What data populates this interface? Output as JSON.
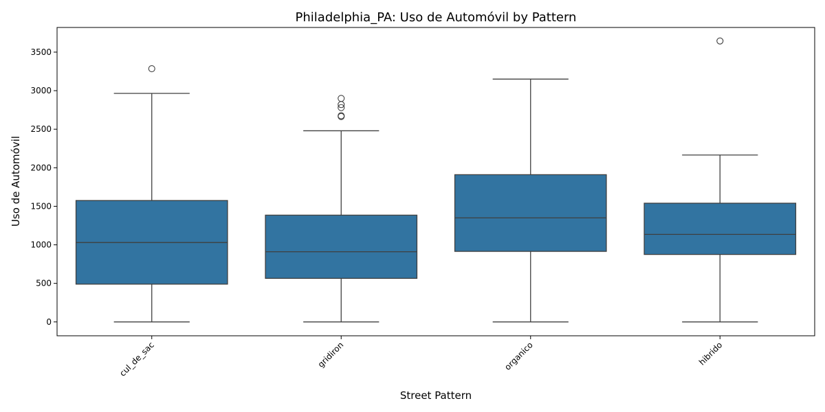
{
  "chart_data": {
    "type": "box",
    "title": "Philadelphia_PA: Uso de Automóvil by Pattern",
    "xlabel": "Street Pattern",
    "ylabel": "Uso de Automóvil",
    "ylim": [
      -180,
      3820
    ],
    "yticks": [
      0,
      500,
      1000,
      1500,
      2000,
      2500,
      3000,
      3500
    ],
    "categories": [
      "cul_de_sac",
      "gridiron",
      "organico",
      "hibrido"
    ],
    "boxes": [
      {
        "category": "cul_de_sac",
        "whisker_low": 0,
        "q1": 490,
        "median": 1030,
        "q3": 1575,
        "whisker_high": 2965,
        "outliers": [
          3285
        ]
      },
      {
        "category": "gridiron",
        "whisker_low": 0,
        "q1": 565,
        "median": 910,
        "q3": 1385,
        "whisker_high": 2480,
        "outliers": [
          2665,
          2675,
          2780,
          2820,
          2900
        ]
      },
      {
        "category": "organico",
        "whisker_low": 0,
        "q1": 915,
        "median": 1350,
        "q3": 1910,
        "whisker_high": 3150,
        "outliers": []
      },
      {
        "category": "hibrido",
        "whisker_low": 0,
        "q1": 875,
        "median": 1135,
        "q3": 1540,
        "whisker_high": 2165,
        "outliers": [
          3645
        ]
      }
    ],
    "box_color": "#3274a1",
    "line_color": "#3f3f3f",
    "grid": false,
    "legend": "none"
  }
}
